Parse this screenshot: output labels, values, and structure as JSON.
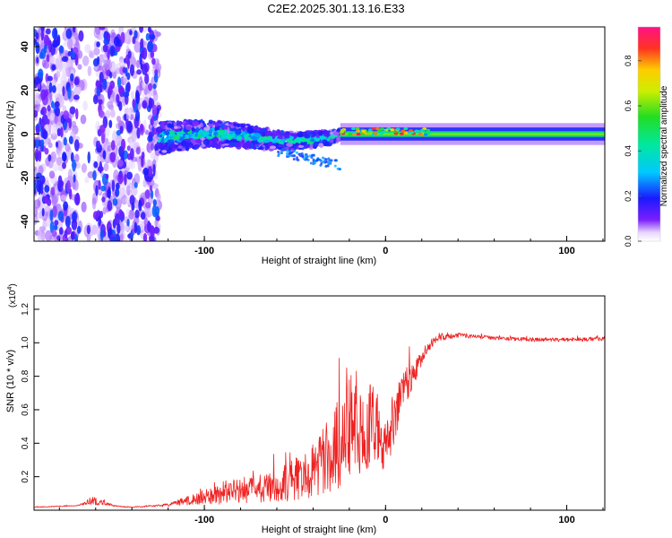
{
  "title": "C2E2.2025.301.13.16.E33",
  "colors": {
    "signal": "#ee2222",
    "axis": "#000000",
    "background": "#ffffff"
  },
  "chart_data": [
    {
      "type": "heatmap",
      "xlabel": "Height of straight line (km)",
      "ylabel": "Frequency (Hz)",
      "xlim": [
        -194,
        121
      ],
      "ylim": [
        -49,
        49
      ],
      "xticks": [
        -100,
        0,
        100
      ],
      "yticks": [
        -40,
        -20,
        0,
        20,
        40
      ],
      "colorbar": {
        "label": "Normalized spectral amplitude",
        "range": [
          0,
          0.95
        ],
        "ticks": [
          "0.0",
          "0.2",
          "0.4",
          "0.6",
          "0.8"
        ],
        "tick_values": [
          0,
          0.2,
          0.4,
          0.6,
          0.8
        ]
      },
      "regions": [
        {
          "name": "broadband noise band",
          "x_range": [
            -194,
            -125
          ],
          "freq_range": [
            -49,
            49
          ],
          "amplitude": 0.2
        },
        {
          "name": "scattered onset",
          "x_range": [
            -125,
            -25
          ],
          "freq_range": [
            -15,
            12
          ],
          "amplitude": 0.35
        },
        {
          "name": "narrow carrier line",
          "x_range": [
            -25,
            121
          ],
          "freq_center": 0,
          "freq_halfwidth": 3,
          "amplitude": 0.9
        }
      ]
    },
    {
      "type": "line",
      "xlabel": "Height of straight line (km)",
      "ylabel": "SNR (10 * v/v)",
      "yscale_label": "(x10",
      "yscale_exp": "4",
      "yscale_close": ")",
      "xlim": [
        -194,
        121
      ],
      "ylim": [
        0,
        1.28
      ],
      "xticks": [
        -100,
        0,
        100
      ],
      "yticks": [
        "0.2",
        "0.4",
        "0.6",
        "0.8",
        "1.0",
        "1.2"
      ],
      "ytick_values": [
        0.2,
        0.4,
        0.6,
        0.8,
        1.0,
        1.2
      ],
      "series": [
        {
          "name": "SNR",
          "envelope_x": [
            -194,
            -170,
            -160,
            -150,
            -140,
            -130,
            -120,
            -110,
            -100,
            -90,
            -80,
            -70,
            -60,
            -50,
            -45,
            -40,
            -35,
            -30,
            -25,
            -20,
            -17,
            -15,
            -12,
            -10,
            -8,
            -5,
            -2,
            0,
            2,
            5,
            8,
            10,
            15,
            18,
            20,
            25,
            30,
            40,
            60,
            80,
            100,
            121
          ],
          "envelope_y": [
            0.02,
            0.03,
            0.08,
            0.03,
            0.02,
            0.03,
            0.04,
            0.08,
            0.12,
            0.17,
            0.2,
            0.2,
            0.24,
            0.31,
            0.36,
            0.42,
            0.5,
            0.58,
            0.68,
            0.78,
            0.88,
            0.82,
            0.66,
            0.7,
            0.78,
            0.72,
            0.62,
            0.55,
            0.63,
            0.72,
            0.8,
            0.86,
            0.9,
            0.92,
            0.96,
            1.02,
            1.05,
            1.06,
            1.04,
            1.03,
            1.03,
            1.04
          ],
          "noise_fraction": [
            0.3,
            0.2,
            0.7,
            0.3,
            0.3,
            0.4,
            0.5,
            0.7,
            0.8,
            0.9,
            0.9,
            0.9,
            0.9,
            0.9,
            0.9,
            0.9,
            0.9,
            0.9,
            0.9,
            0.9,
            0.8,
            0.8,
            0.8,
            0.8,
            0.7,
            0.7,
            0.7,
            0.6,
            0.6,
            0.5,
            0.4,
            0.35,
            0.2,
            0.15,
            0.1,
            0.06,
            0.04,
            0.03,
            0.025,
            0.025,
            0.025,
            0.03
          ]
        }
      ]
    }
  ]
}
